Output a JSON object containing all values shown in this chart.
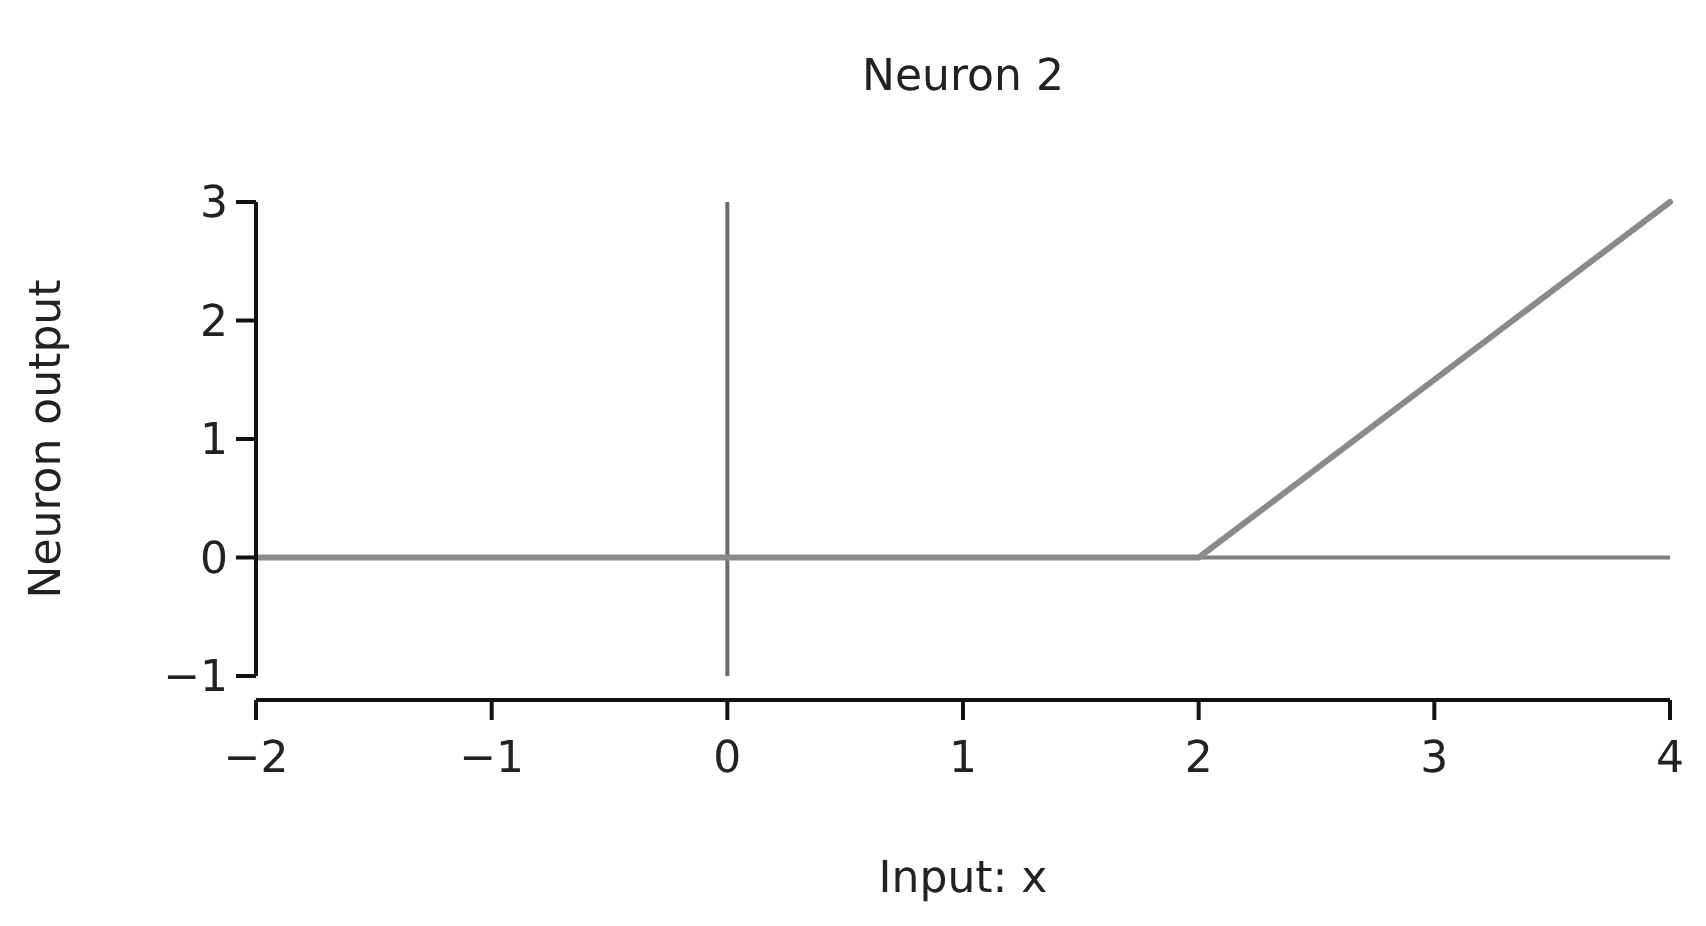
{
  "chart_data": {
    "type": "line",
    "title": "Neuron 2",
    "xlabel": "Input: x",
    "ylabel": "Neuron output",
    "x": [
      -2,
      2,
      4
    ],
    "series": [
      {
        "color": "#8a8a8a",
        "values": [
          0,
          0,
          3
        ]
      }
    ],
    "xlim": [
      -2,
      4
    ],
    "xticks": [
      {
        "value": -2,
        "label": "−2"
      },
      {
        "value": -1,
        "label": "−1"
      },
      0,
      1,
      2,
      3,
      4
    ],
    "ylim": [
      -1,
      3
    ],
    "yticks": [
      {
        "value": -1,
        "label": "−1"
      },
      0,
      1,
      2,
      3
    ],
    "ref_lines": [
      {
        "axis": "x",
        "value": 0,
        "color": "#6a6a6a"
      },
      {
        "axis": "y",
        "value": 0,
        "color": "#808080"
      }
    ],
    "grid": false,
    "marker": "none",
    "line_style": "solid"
  }
}
